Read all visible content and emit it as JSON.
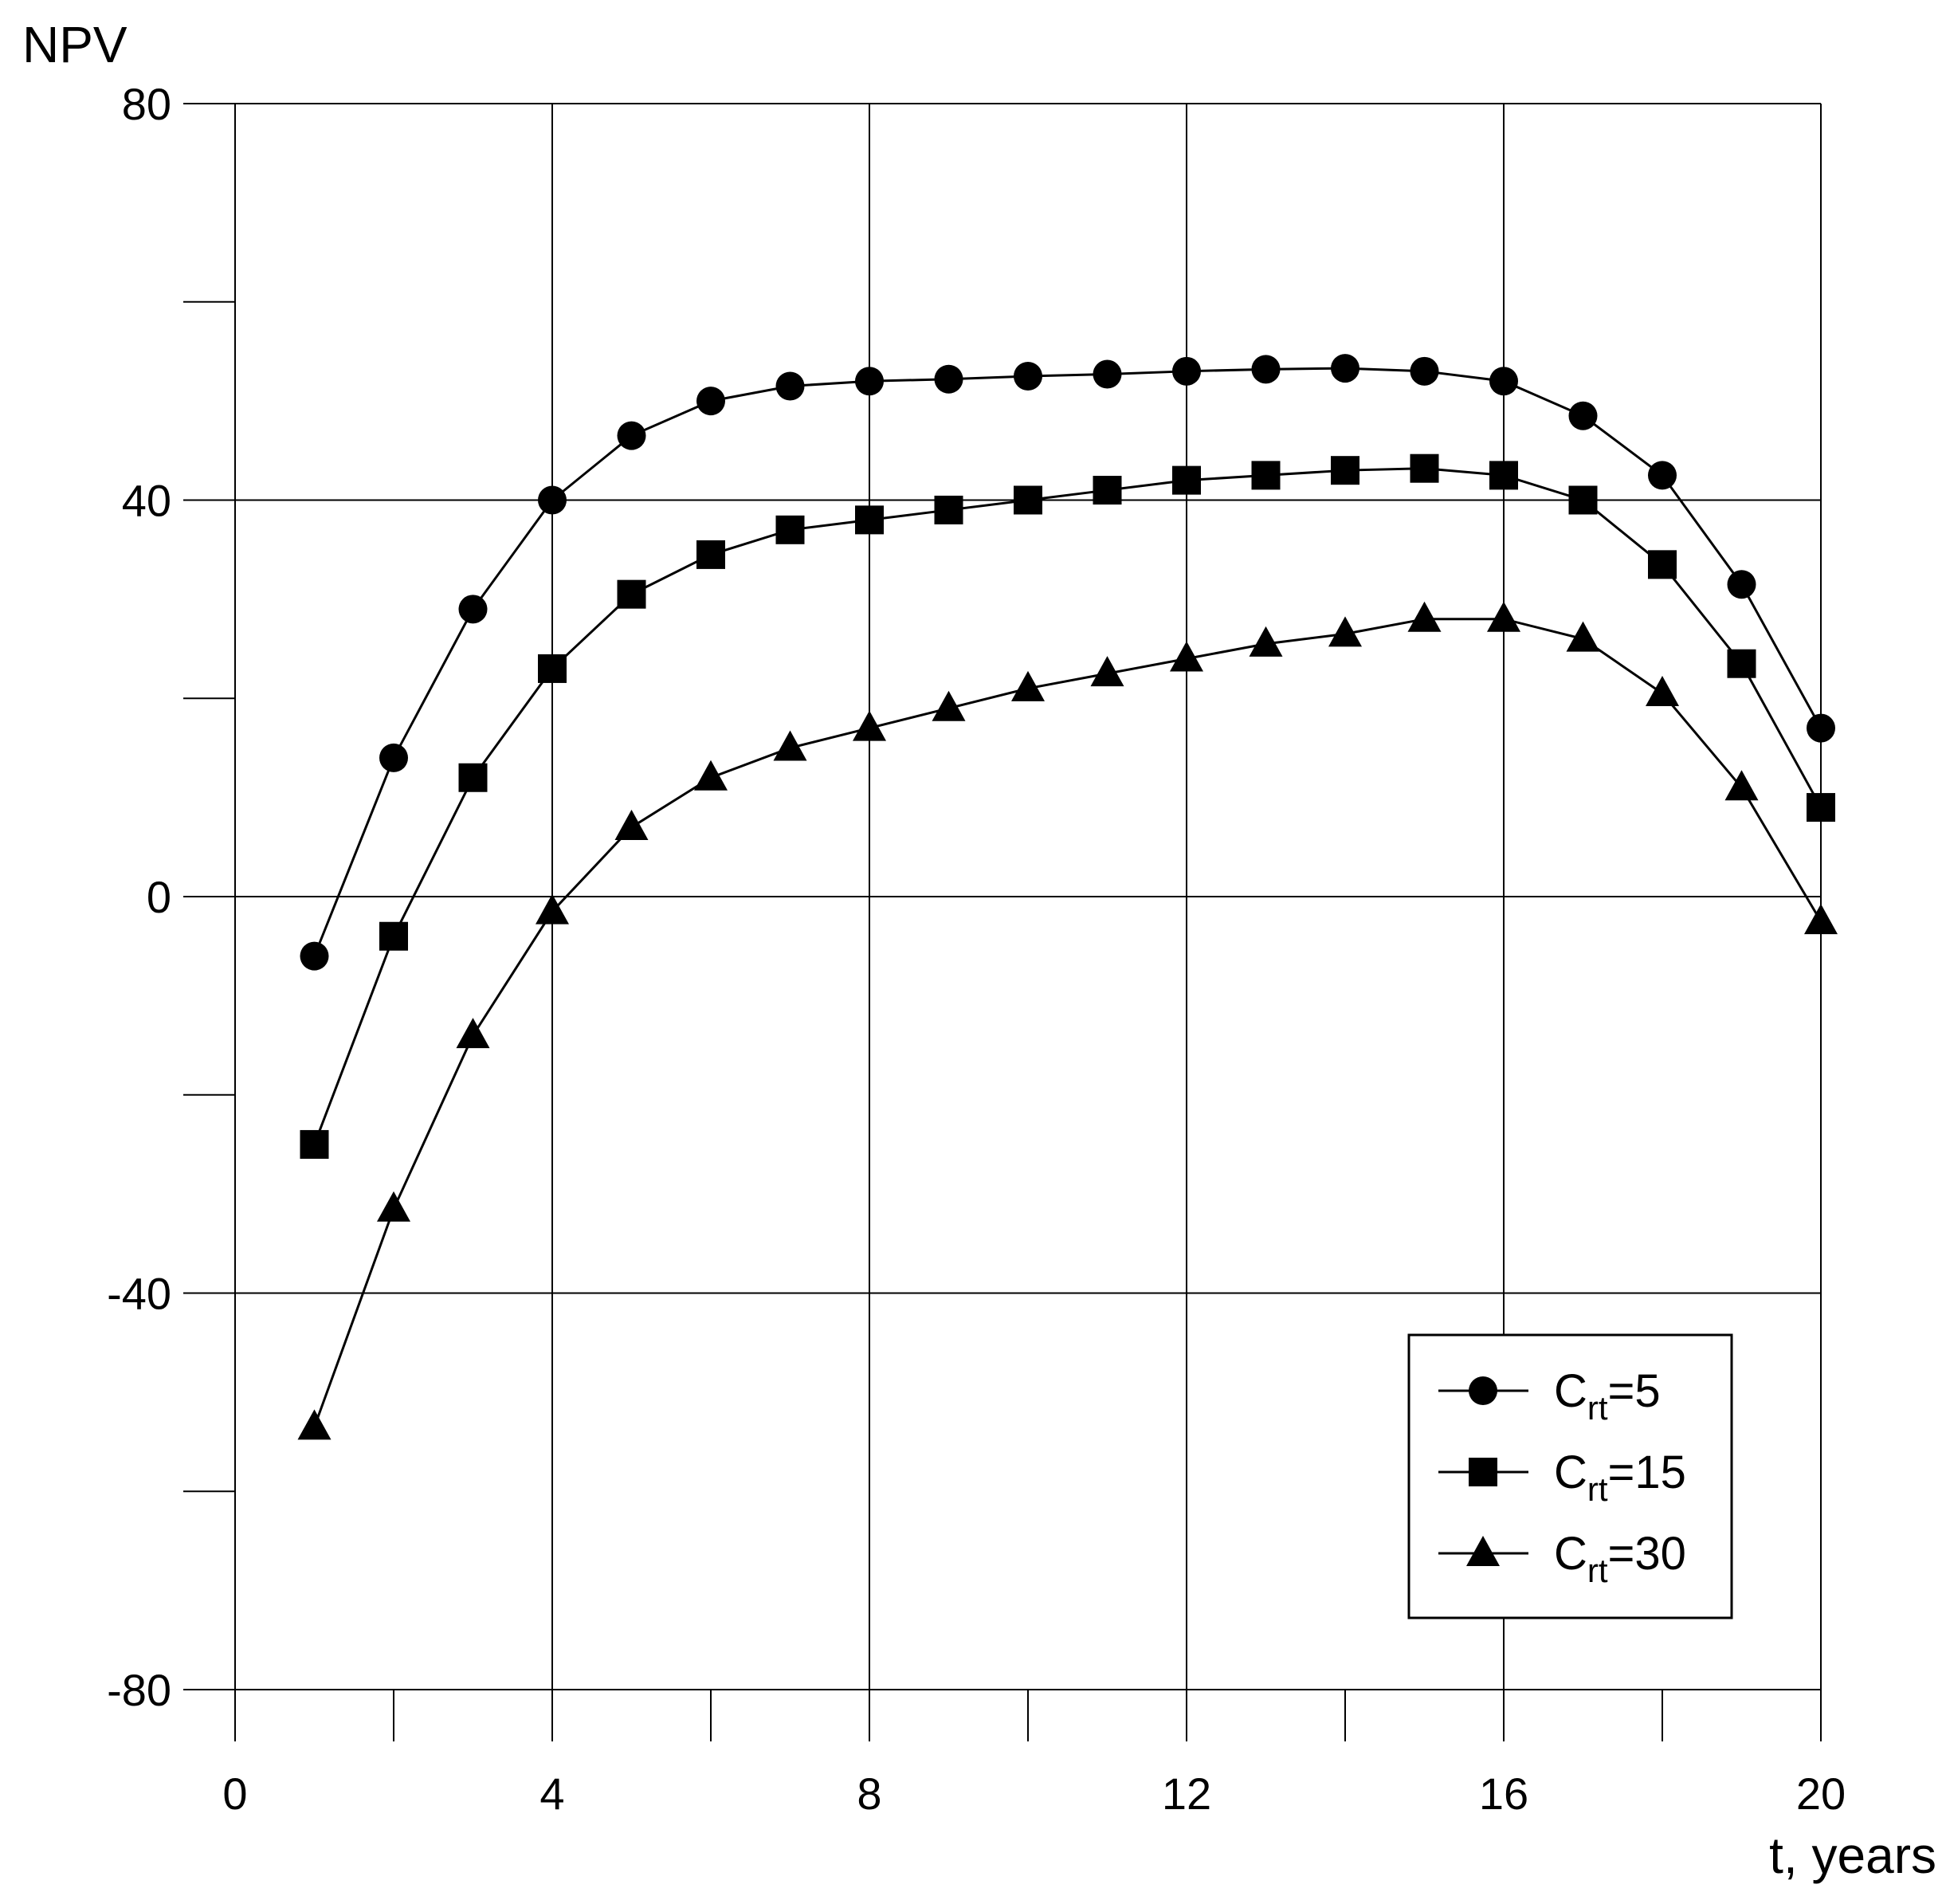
{
  "chart_data": {
    "type": "line",
    "title": "",
    "xlabel": "t, years",
    "ylabel": "NPV",
    "xlim": [
      0,
      20
    ],
    "ylim": [
      -80,
      80
    ],
    "x_ticks": [
      0,
      2,
      4,
      6,
      8,
      10,
      12,
      14,
      16,
      18,
      20
    ],
    "x_tick_labels": [
      "0",
      "",
      "4",
      "",
      "8",
      "",
      "12",
      "",
      "16",
      "",
      "20"
    ],
    "y_ticks": [
      -80,
      -60,
      -40,
      -20,
      0,
      20,
      40,
      60,
      80
    ],
    "y_tick_labels": [
      "-80",
      "",
      "-40",
      "",
      "0",
      "",
      "40",
      "",
      "80"
    ],
    "grid": true,
    "grid_x": [
      0,
      4,
      8,
      12,
      16,
      20
    ],
    "grid_y": [
      -80,
      -40,
      0,
      40,
      80
    ],
    "legend_position": "bottom-right",
    "x": [
      1,
      2,
      3,
      4,
      5,
      6,
      7,
      8,
      9,
      10,
      11,
      12,
      13,
      14,
      15,
      16,
      17,
      18,
      19,
      20
    ],
    "series": [
      {
        "legend_main": "C",
        "legend_sub": "rt",
        "legend_value": "=5",
        "marker": "circle",
        "values": [
          -6,
          14,
          29,
          40,
          46.5,
          50,
          51.5,
          52,
          52.2,
          52.5,
          52.7,
          53,
          53.2,
          53.3,
          53,
          52,
          48.5,
          42.5,
          31.5,
          17
        ]
      },
      {
        "legend_main": "C",
        "legend_sub": "rt",
        "legend_value": "=15",
        "marker": "square",
        "values": [
          -25,
          -4,
          12,
          23,
          30.5,
          34.5,
          37,
          38,
          39,
          40,
          41,
          42,
          42.5,
          43,
          43.2,
          42.5,
          40,
          33.5,
          23.5,
          9
        ]
      },
      {
        "legend_main": "C",
        "legend_sub": "rt",
        "legend_value": "=30",
        "marker": "triangle",
        "values": [
          -53.5,
          -31.5,
          -14,
          -1.5,
          7,
          12,
          15,
          17,
          19,
          21,
          22.5,
          24,
          25.5,
          26.5,
          28,
          28,
          26,
          20.5,
          11,
          -2.5
        ]
      }
    ]
  }
}
